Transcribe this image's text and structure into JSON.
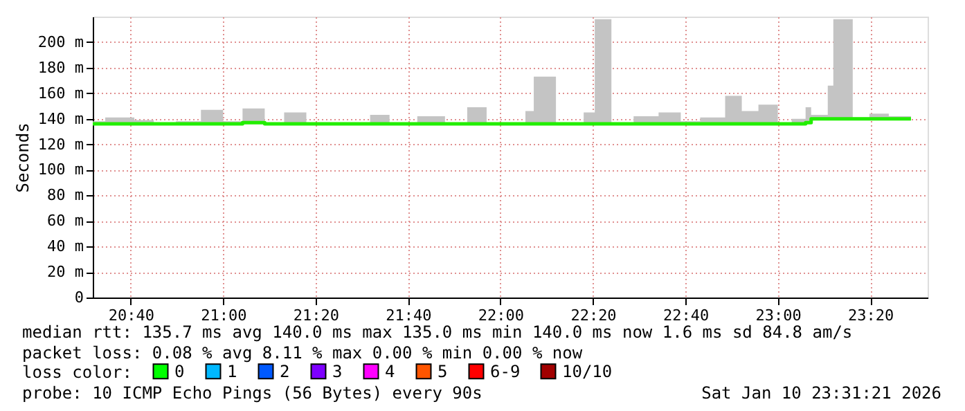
{
  "chart_data": {
    "type": "step",
    "ylabel": "Seconds",
    "x": [
      20.53,
      20.575,
      20.68,
      20.75,
      20.83,
      20.92,
      21.0,
      21.07,
      21.15,
      21.22,
      21.3,
      21.38,
      21.53,
      21.6,
      21.7,
      21.8,
      21.88,
      21.95,
      22.03,
      22.09,
      22.12,
      22.2,
      22.3,
      22.34,
      22.4,
      22.48,
      22.57,
      22.65,
      22.72,
      22.81,
      22.87,
      22.93,
      23.0,
      23.05,
      23.1,
      23.12,
      23.18,
      23.2,
      23.27,
      23.33,
      23.4,
      23.48
    ],
    "series": [
      {
        "color": "#22ee00",
        "values": [
          136,
          136,
          136,
          136,
          136,
          136,
          136,
          137,
          136,
          136,
          136,
          136,
          136,
          136,
          136,
          136,
          136,
          136,
          136,
          136,
          136,
          136,
          136,
          136,
          136,
          136,
          136,
          136,
          136,
          136,
          136,
          136,
          136,
          136,
          137,
          140,
          140,
          140,
          140,
          140,
          140,
          140
        ],
        "lower": [
          136,
          136,
          136,
          136,
          136,
          136,
          136,
          137,
          136,
          136,
          136,
          136,
          136,
          136,
          136,
          136,
          136,
          136,
          136,
          136,
          136,
          136,
          136,
          136,
          136,
          136,
          136,
          136,
          136,
          136,
          136,
          136,
          136,
          136,
          137,
          140,
          140,
          140,
          140,
          140,
          140,
          140
        ],
        "upper": [
          138,
          141,
          139,
          137,
          138,
          147,
          138,
          148,
          137,
          145,
          137,
          137,
          143,
          137,
          142,
          137,
          149,
          137,
          137,
          146,
          173,
          137,
          145,
          218,
          137,
          142,
          145,
          138,
          141,
          158,
          146,
          151,
          137,
          140,
          149,
          143,
          166,
          218,
          141,
          144,
          142,
          141
        ]
      },
      {
        "type": "scatter",
        "name": "0",
        "color": "#00ff00",
        "marker": "square",
        "values": [
          null,
          null,
          null,
          null,
          null,
          null,
          null,
          null,
          null,
          null,
          null,
          null,
          null,
          null,
          null,
          null,
          null,
          null,
          null,
          null,
          null,
          null,
          null,
          null,
          null,
          null,
          null,
          null,
          null,
          null,
          null,
          null,
          null,
          null,
          null,
          null,
          null,
          null,
          null,
          null,
          null,
          null
        ]
      },
      {
        "type": "scatter",
        "name": "1",
        "color": "#00b8ff",
        "marker": "square",
        "values": [
          null,
          null,
          null,
          null,
          null,
          null,
          null,
          null,
          null,
          null,
          null,
          null,
          null,
          null,
          null,
          null,
          null,
          null,
          null,
          null,
          null,
          null,
          null,
          null,
          null,
          null,
          null,
          null,
          null,
          null,
          null,
          null,
          null,
          null,
          null,
          null,
          null,
          null,
          null,
          null,
          null,
          null
        ]
      },
      {
        "type": "scatter",
        "name": "2",
        "color": "#0059ff",
        "marker": "square",
        "values": [
          null,
          null,
          null,
          null,
          null,
          null,
          null,
          null,
          null,
          null,
          null,
          null,
          null,
          null,
          null,
          null,
          null,
          null,
          null,
          null,
          null,
          null,
          null,
          null,
          null,
          null,
          null,
          null,
          null,
          null,
          null,
          null,
          null,
          null,
          null,
          null,
          null,
          null,
          null,
          null,
          null,
          null
        ]
      },
      {
        "type": "scatter",
        "name": "3",
        "color": "#7e00ff",
        "marker": "square",
        "values": [
          null,
          null,
          null,
          null,
          null,
          null,
          null,
          null,
          null,
          null,
          null,
          null,
          null,
          null,
          null,
          null,
          null,
          null,
          null,
          null,
          null,
          null,
          null,
          null,
          null,
          null,
          null,
          null,
          null,
          null,
          null,
          null,
          null,
          null,
          null,
          null,
          null,
          null,
          null,
          null,
          null,
          null
        ]
      },
      {
        "type": "scatter",
        "name": "4",
        "color": "#ff00ff",
        "marker": "square",
        "values": [
          null,
          null,
          null,
          null,
          null,
          null,
          null,
          null,
          null,
          null,
          null,
          null,
          null,
          null,
          null,
          null,
          null,
          null,
          null,
          null,
          null,
          null,
          null,
          null,
          null,
          null,
          null,
          null,
          null,
          null,
          null,
          null,
          null,
          null,
          null,
          null,
          null,
          null,
          null,
          null,
          null,
          null
        ]
      },
      {
        "type": "scatter",
        "name": "5",
        "color": "#ff5500",
        "marker": "square",
        "values": [
          null,
          null,
          null,
          null,
          null,
          null,
          null,
          null,
          null,
          null,
          null,
          null,
          null,
          null,
          null,
          null,
          null,
          null,
          null,
          null,
          null,
          null,
          null,
          null,
          null,
          null,
          null,
          null,
          null,
          null,
          null,
          null,
          null,
          null,
          null,
          null,
          null,
          null,
          null,
          null,
          null,
          null
        ]
      },
      {
        "type": "scatter",
        "name": "6-9",
        "color": "#ff0000",
        "marker": "square",
        "values": [
          null,
          null,
          null,
          null,
          null,
          null,
          null,
          null,
          null,
          null,
          null,
          null,
          null,
          null,
          null,
          null,
          null,
          null,
          null,
          null,
          null,
          null,
          null,
          null,
          null,
          null,
          null,
          null,
          null,
          null,
          null,
          null,
          null,
          null,
          null,
          null,
          null,
          null,
          null,
          null,
          null,
          null
        ]
      },
      {
        "type": "scatter",
        "name": "10/10",
        "color": "#a10000",
        "marker": "square",
        "values": [
          null,
          null,
          null,
          null,
          null,
          null,
          null,
          null,
          null,
          null,
          null,
          null,
          null,
          null,
          null,
          null,
          null,
          null,
          null,
          null,
          null,
          null,
          null,
          null,
          null,
          null,
          null,
          null,
          null,
          null,
          null,
          null,
          null,
          null,
          null,
          null,
          null,
          null,
          null,
          null,
          null,
          null
        ]
      }
    ],
    "legend_title": "loss color:",
    "legend": "bottom",
    "xlim": [
      20.53,
      23.54
    ],
    "xticks": [
      {
        "value": 20.6667,
        "label": "20:40"
      },
      {
        "value": 21.0,
        "label": "21:00"
      },
      {
        "value": 21.3333,
        "label": "21:20"
      },
      {
        "value": 21.6667,
        "label": "21:40"
      },
      {
        "value": 22.0,
        "label": "22:00"
      },
      {
        "value": 22.3333,
        "label": "22:20"
      },
      {
        "value": 22.6667,
        "label": "22:40"
      },
      {
        "value": 23.0,
        "label": "23:00"
      },
      {
        "value": 23.3333,
        "label": "23:20"
      }
    ],
    "ylim": [
      0,
      220
    ],
    "yticks": [
      0,
      {
        "value": 20,
        "label": "20 m"
      },
      {
        "value": 40,
        "label": "40 m"
      },
      {
        "value": 60,
        "label": "60 m"
      },
      {
        "value": 80,
        "label": "80 m"
      },
      {
        "value": 100,
        "label": "100 m"
      },
      {
        "value": 120,
        "label": "120 m"
      },
      {
        "value": 140,
        "label": "140 m"
      },
      {
        "value": 160,
        "label": "160 m"
      },
      {
        "value": 180,
        "label": "180 m"
      },
      {
        "value": 200,
        "label": "200 m"
      }
    ],
    "grid": true,
    "annotations": [
      "median rtt:  135.7 ms avg  140.0 ms max  135.0 ms min  140.0 ms now  1.6 ms sd  84.8   am/s",
      "packet loss: 0.08 % avg  8.11 % max  0.00 % min  0.00 % now",
      "probe:       10 ICMP Echo Pings (56 Bytes) every 90s",
      "Sat Jan 10 23:31:21 2026"
    ]
  }
}
